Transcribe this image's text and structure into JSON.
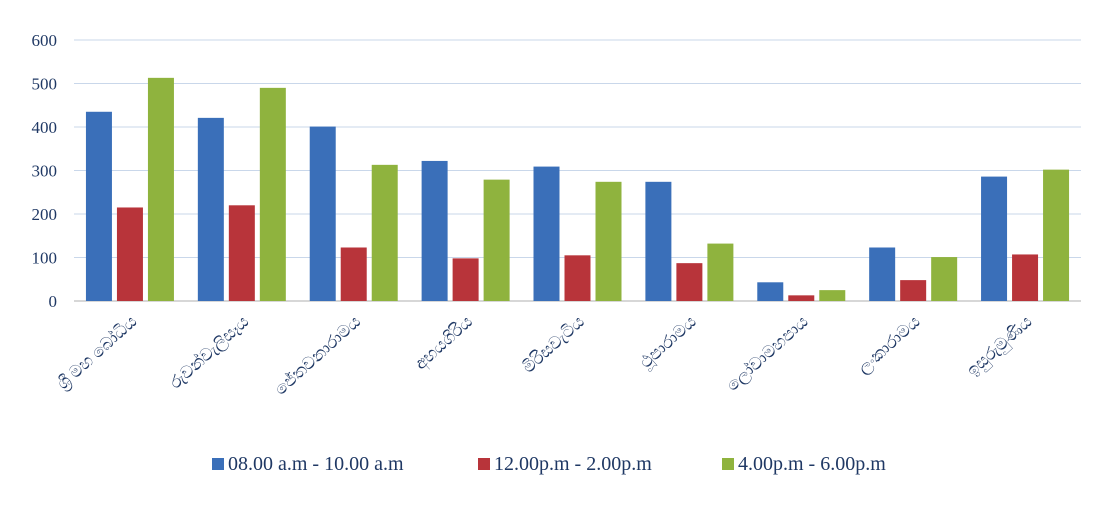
{
  "chart_data": {
    "type": "bar",
    "categories": [
      "ශ්‍රී මහ බෝධිය",
      "රුවන්වැලිසෑය",
      "ජේතවනාරාමය",
      "අභයගිරිය",
      "මිරිසවැටිය",
      "ථූපාරාමය",
      "ලෝවාමහපාය",
      "ලංකාරාමය",
      "ඉසුරුමුණිය"
    ],
    "series": [
      {
        "name": "08.00 a.m - 10.00 a.m",
        "color": "#3a6fb9",
        "values": [
          435,
          421,
          401,
          322,
          309,
          274,
          43,
          123,
          286
        ]
      },
      {
        "name": "12.00p.m - 2.00p.m",
        "color": "#b8343a",
        "values": [
          215,
          220,
          123,
          98,
          105,
          87,
          13,
          48,
          107
        ]
      },
      {
        "name": "4.00p.m - 6.00p.m",
        "color": "#8fb33e",
        "values": [
          513,
          490,
          313,
          279,
          274,
          132,
          25,
          101,
          302
        ]
      }
    ],
    "y_ticks": [
      "0",
      "100",
      "200",
      "300",
      "400",
      "500",
      "600"
    ],
    "ylim": [
      0,
      600
    ],
    "grid": true,
    "legend_position": "bottom"
  }
}
